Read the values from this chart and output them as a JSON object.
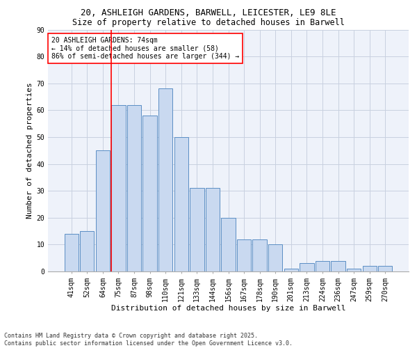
{
  "title_line1": "20, ASHLEIGH GARDENS, BARWELL, LEICESTER, LE9 8LE",
  "title_line2": "Size of property relative to detached houses in Barwell",
  "xlabel": "Distribution of detached houses by size in Barwell",
  "ylabel": "Number of detached properties",
  "categories": [
    "41sqm",
    "52sqm",
    "64sqm",
    "75sqm",
    "87sqm",
    "98sqm",
    "110sqm",
    "121sqm",
    "133sqm",
    "144sqm",
    "156sqm",
    "167sqm",
    "178sqm",
    "190sqm",
    "201sqm",
    "213sqm",
    "224sqm",
    "236sqm",
    "247sqm",
    "259sqm",
    "270sqm"
  ],
  "values": [
    14,
    15,
    45,
    62,
    62,
    58,
    68,
    50,
    31,
    31,
    20,
    12,
    12,
    10,
    1,
    3,
    4,
    4,
    1,
    2,
    2
  ],
  "bar_color": "#c9d9f0",
  "bar_edge_color": "#5b8ec4",
  "vline_color": "red",
  "annotation_text": "20 ASHLEIGH GARDENS: 74sqm\n← 14% of detached houses are smaller (58)\n86% of semi-detached houses are larger (344) →",
  "annotation_box_color": "white",
  "annotation_box_edge": "red",
  "ylim": [
    0,
    90
  ],
  "yticks": [
    0,
    10,
    20,
    30,
    40,
    50,
    60,
    70,
    80,
    90
  ],
  "footer_text": "Contains HM Land Registry data © Crown copyright and database right 2025.\nContains public sector information licensed under the Open Government Licence v3.0.",
  "bg_color": "#eef2fa",
  "grid_color": "#c8d0e0",
  "title_fontsize": 9,
  "subtitle_fontsize": 8.5,
  "ylabel_fontsize": 8,
  "xlabel_fontsize": 8,
  "tick_fontsize": 7,
  "footer_fontsize": 6
}
